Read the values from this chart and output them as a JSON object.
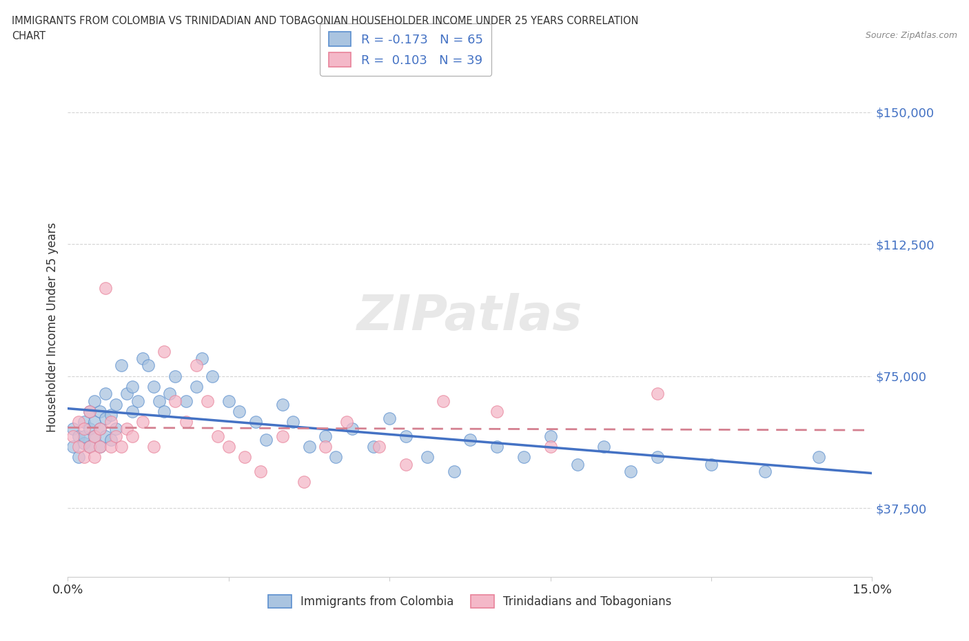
{
  "title_line1": "IMMIGRANTS FROM COLOMBIA VS TRINIDADIAN AND TOBAGONIAN HOUSEHOLDER INCOME UNDER 25 YEARS CORRELATION",
  "title_line2": "CHART",
  "source": "Source: ZipAtlas.com",
  "ylabel": "Householder Income Under 25 years",
  "xmin": 0.0,
  "xmax": 0.15,
  "ymin": 18000,
  "ymax": 160000,
  "yticks": [
    37500,
    75000,
    112500,
    150000
  ],
  "ytick_labels": [
    "$37,500",
    "$75,000",
    "$112,500",
    "$150,000"
  ],
  "xticks": [
    0.0,
    0.03,
    0.06,
    0.09,
    0.12,
    0.15
  ],
  "xtick_labels": [
    "0.0%",
    "",
    "",
    "",
    "",
    "15.0%"
  ],
  "watermark": "ZIPatlas",
  "legend_labels": [
    "Immigrants from Colombia",
    "Trinidadians and Tobagonians"
  ],
  "colombia_color": "#aac4e0",
  "trinidad_color": "#f4b8c8",
  "colombia_edge_color": "#5b8fce",
  "trinidad_edge_color": "#e8829a",
  "colombia_line_color": "#4472c4",
  "trinidad_line_color": "#d48090",
  "R_colombia": -0.173,
  "N_colombia": 65,
  "R_trinidad": 0.103,
  "N_trinidad": 39,
  "colombia_x": [
    0.001,
    0.001,
    0.002,
    0.002,
    0.003,
    0.003,
    0.003,
    0.004,
    0.004,
    0.004,
    0.005,
    0.005,
    0.005,
    0.006,
    0.006,
    0.006,
    0.007,
    0.007,
    0.007,
    0.008,
    0.008,
    0.009,
    0.009,
    0.01,
    0.011,
    0.012,
    0.012,
    0.013,
    0.014,
    0.015,
    0.016,
    0.017,
    0.018,
    0.019,
    0.02,
    0.022,
    0.024,
    0.025,
    0.027,
    0.03,
    0.032,
    0.035,
    0.037,
    0.04,
    0.042,
    0.045,
    0.048,
    0.05,
    0.053,
    0.057,
    0.06,
    0.063,
    0.067,
    0.072,
    0.075,
    0.08,
    0.085,
    0.09,
    0.095,
    0.1,
    0.105,
    0.11,
    0.12,
    0.13,
    0.14
  ],
  "colombia_y": [
    55000,
    60000,
    52000,
    58000,
    56000,
    62000,
    58000,
    60000,
    65000,
    55000,
    58000,
    62000,
    68000,
    55000,
    60000,
    65000,
    58000,
    63000,
    70000,
    57000,
    64000,
    60000,
    67000,
    78000,
    70000,
    65000,
    72000,
    68000,
    80000,
    78000,
    72000,
    68000,
    65000,
    70000,
    75000,
    68000,
    72000,
    80000,
    75000,
    68000,
    65000,
    62000,
    57000,
    67000,
    62000,
    55000,
    58000,
    52000,
    60000,
    55000,
    63000,
    58000,
    52000,
    48000,
    57000,
    55000,
    52000,
    58000,
    50000,
    55000,
    48000,
    52000,
    50000,
    48000,
    52000
  ],
  "trinidad_x": [
    0.001,
    0.002,
    0.002,
    0.003,
    0.003,
    0.004,
    0.004,
    0.005,
    0.005,
    0.006,
    0.006,
    0.007,
    0.008,
    0.008,
    0.009,
    0.01,
    0.011,
    0.012,
    0.014,
    0.016,
    0.018,
    0.02,
    0.022,
    0.024,
    0.026,
    0.028,
    0.03,
    0.033,
    0.036,
    0.04,
    0.044,
    0.048,
    0.052,
    0.058,
    0.063,
    0.07,
    0.08,
    0.09,
    0.11
  ],
  "trinidad_y": [
    58000,
    55000,
    62000,
    52000,
    60000,
    55000,
    65000,
    58000,
    52000,
    60000,
    55000,
    100000,
    62000,
    55000,
    58000,
    55000,
    60000,
    58000,
    62000,
    55000,
    82000,
    68000,
    62000,
    78000,
    68000,
    58000,
    55000,
    52000,
    48000,
    58000,
    45000,
    55000,
    62000,
    55000,
    50000,
    68000,
    65000,
    55000,
    70000
  ]
}
